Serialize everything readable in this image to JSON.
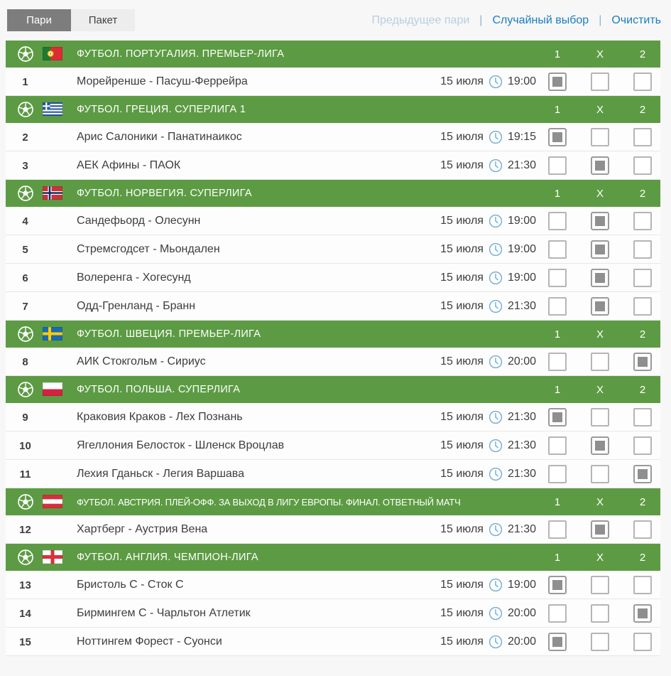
{
  "tabs": [
    {
      "label": "Пари",
      "selected": true
    },
    {
      "label": "Пакет",
      "selected": false
    }
  ],
  "toolbar": {
    "previous_bet": "Предыдущее пари",
    "random_pick": "Случайный выбор",
    "clear": "Очистить",
    "separator": "|"
  },
  "columns": [
    "1",
    "X",
    "2"
  ],
  "colors": {
    "header_green": "#5c9b43",
    "accent_blue": "#1b7dbd",
    "disabled_blue": "#b9cede",
    "tab_selected_gray": "#7d7d7d",
    "checkbox_fill_gray": "#8f8f8f",
    "clock_blue": "#78b0d8"
  },
  "sections": [
    {
      "flag": "portugal",
      "title": "ФУТБОЛ. ПОРТУГАЛИЯ. ПРЕМЬЕР-ЛИГА",
      "matches": [
        {
          "num": "1",
          "name": "Морейренше - Пасуш-Феррейра",
          "date": "15 июля",
          "time": "19:00",
          "pick": "1"
        }
      ]
    },
    {
      "flag": "greece",
      "title": "ФУТБОЛ. ГРЕЦИЯ. СУПЕРЛИГА 1",
      "matches": [
        {
          "num": "2",
          "name": "Арис Салоники - Панатинаикос",
          "date": "15 июля",
          "time": "19:15",
          "pick": "1"
        },
        {
          "num": "3",
          "name": "АЕК Афины - ПАОК",
          "date": "15 июля",
          "time": "21:30",
          "pick": "X"
        }
      ]
    },
    {
      "flag": "norway",
      "title": "ФУТБОЛ. НОРВЕГИЯ. СУПЕРЛИГА",
      "matches": [
        {
          "num": "4",
          "name": "Сандефьорд - Олесунн",
          "date": "15 июля",
          "time": "19:00",
          "pick": "X"
        },
        {
          "num": "5",
          "name": "Стремсгодсет - Мьондален",
          "date": "15 июля",
          "time": "19:00",
          "pick": "X"
        },
        {
          "num": "6",
          "name": "Волеренга - Хогесунд",
          "date": "15 июля",
          "time": "19:00",
          "pick": "X"
        },
        {
          "num": "7",
          "name": "Одд-Гренланд - Бранн",
          "date": "15 июля",
          "time": "21:30",
          "pick": "X"
        }
      ]
    },
    {
      "flag": "sweden",
      "title": "ФУТБОЛ. ШВЕЦИЯ. ПРЕМЬЕР-ЛИГА",
      "matches": [
        {
          "num": "8",
          "name": "АИК Стокгольм - Сириус",
          "date": "15 июля",
          "time": "20:00",
          "pick": "2"
        }
      ]
    },
    {
      "flag": "poland",
      "title": "ФУТБОЛ. ПОЛЬША. СУПЕРЛИГА",
      "matches": [
        {
          "num": "9",
          "name": "Краковия Краков - Лех Познань",
          "date": "15 июля",
          "time": "21:30",
          "pick": "1"
        },
        {
          "num": "10",
          "name": "Ягеллония Белосток - Шленск Вроцлав",
          "date": "15 июля",
          "time": "21:30",
          "pick": "X"
        },
        {
          "num": "11",
          "name": "Лехия Гданьск - Легия Варшава",
          "date": "15 июля",
          "time": "21:30",
          "pick": "2"
        }
      ]
    },
    {
      "flag": "austria",
      "title": "ФУТБОЛ. АВСТРИЯ. ПЛЕЙ-ОФФ. ЗА ВЫХОД В ЛИГУ ЕВРОПЫ. ФИНАЛ. ОТВЕТНЫЙ МАТЧ",
      "matches": [
        {
          "num": "12",
          "name": "Хартберг - Аустрия Вена",
          "date": "15 июля",
          "time": "21:30",
          "pick": "X"
        }
      ]
    },
    {
      "flag": "england",
      "title": "ФУТБОЛ. АНГЛИЯ. ЧЕМПИОН-ЛИГА",
      "matches": [
        {
          "num": "13",
          "name": "Бристоль С - Сток С",
          "date": "15 июля",
          "time": "19:00",
          "pick": "1"
        },
        {
          "num": "14",
          "name": "Бирмингем С - Чарльтон Атлетик",
          "date": "15 июля",
          "time": "20:00",
          "pick": "2"
        },
        {
          "num": "15",
          "name": "Ноттингем Форест - Суонси",
          "date": "15 июля",
          "time": "20:00",
          "pick": "1"
        }
      ]
    }
  ]
}
